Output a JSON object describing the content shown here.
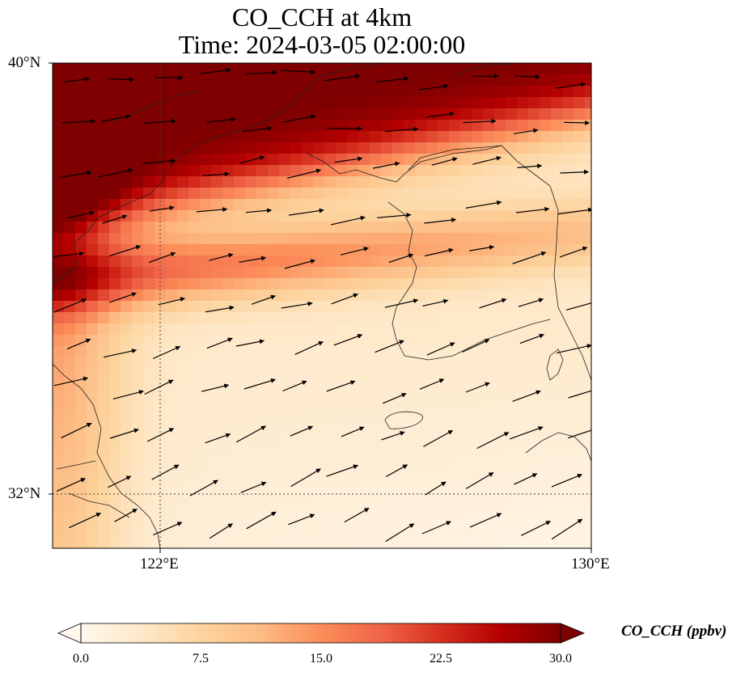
{
  "title": {
    "line1": "CO_CCH at 4km",
    "line2": "Time: 2024-03-05 02:00:00"
  },
  "axes": {
    "lat_labels": [
      "40°N",
      "32°N"
    ],
    "lon_labels": [
      "122°E",
      "130°E"
    ],
    "lon_range": [
      120,
      130
    ],
    "lat_range": [
      31,
      40
    ]
  },
  "colorbar": {
    "label": "CO_CCH (ppbv)",
    "ticks": [
      "0.0",
      "7.5",
      "15.0",
      "22.5",
      "30.0"
    ],
    "min": 0,
    "max": 30,
    "extend": "both",
    "colormap": "OrRd",
    "colors": [
      "#fff7ec",
      "#fee8c8",
      "#fdd49e",
      "#fdbb84",
      "#fc8d59",
      "#ef6548",
      "#d7301f",
      "#b30000",
      "#7f0000"
    ]
  },
  "map": {
    "gridlines": "dotted",
    "features": [
      "coastlines",
      "wind-vectors"
    ]
  }
}
